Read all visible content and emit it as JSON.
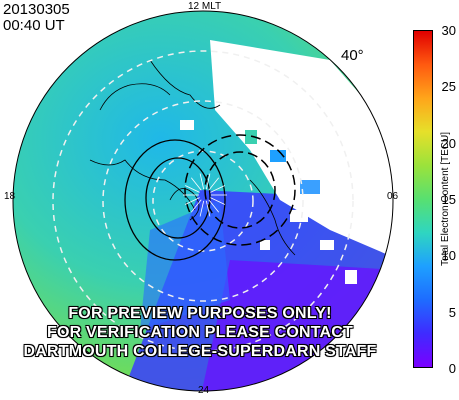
{
  "header": {
    "date": "20130305",
    "time": "00:40  UT"
  },
  "latitude_label": "40°",
  "mlt_labels": {
    "top": "12 MLT",
    "left": "18",
    "right": "06",
    "bottom": "24"
  },
  "colorbar": {
    "title": "Total Electron Content [TECU]",
    "ticks": [
      "30",
      "25",
      "20",
      "15",
      "10",
      "5",
      "0"
    ],
    "min": 0,
    "max": 30,
    "colors": [
      "#7a00ff",
      "#3f2bff",
      "#1e6cff",
      "#1ea0ff",
      "#2fd6c0",
      "#58e070",
      "#9be23b",
      "#e6e02a",
      "#ffa51a",
      "#ff5a10",
      "#e00000"
    ]
  },
  "watermark": {
    "line1": "FOR PREVIEW PURPOSES ONLY!",
    "line2": "FOR VERIFICATION PLEASE CONTACT",
    "line3": "DARTMOUTH COLLEGE-SUPERDARN STAFF"
  }
}
